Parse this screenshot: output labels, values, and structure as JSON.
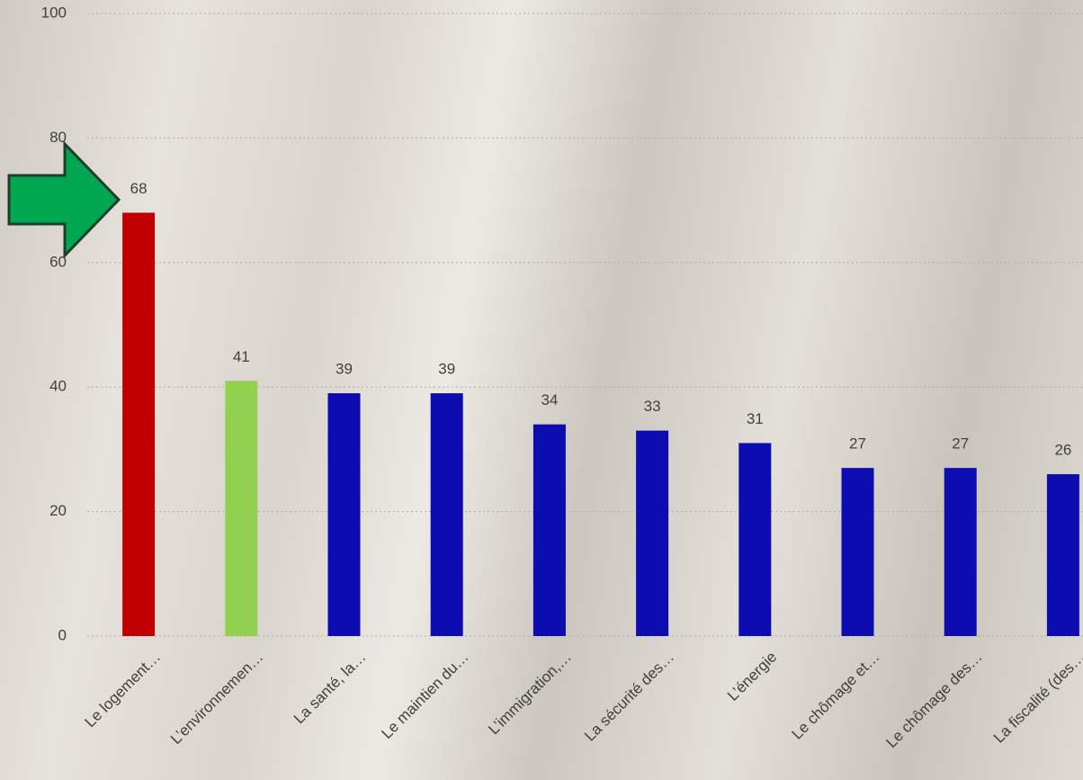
{
  "chart_data": {
    "type": "bar",
    "categories": [
      "Le logement…",
      "L’environnemen…",
      "La santé, la…",
      "Le maintien du…",
      "L’immigration,…",
      "La sécurité des…",
      "L’énergie",
      "Le chômage  et…",
      "Le chômage des…",
      "La fiscalité (des…"
    ],
    "values": [
      68,
      41,
      39,
      39,
      34,
      33,
      31,
      27,
      27,
      26
    ],
    "colors": [
      "#c00000",
      "#92d050",
      "#0c0cb0",
      "#0c0cb0",
      "#0c0cb0",
      "#0c0cb0",
      "#0c0cb0",
      "#0c0cb0",
      "#0c0cb0",
      "#0c0cb0"
    ],
    "ylim": [
      0,
      100
    ],
    "yticks": [
      0,
      20,
      40,
      60,
      80,
      100
    ],
    "grid": true
  }
}
